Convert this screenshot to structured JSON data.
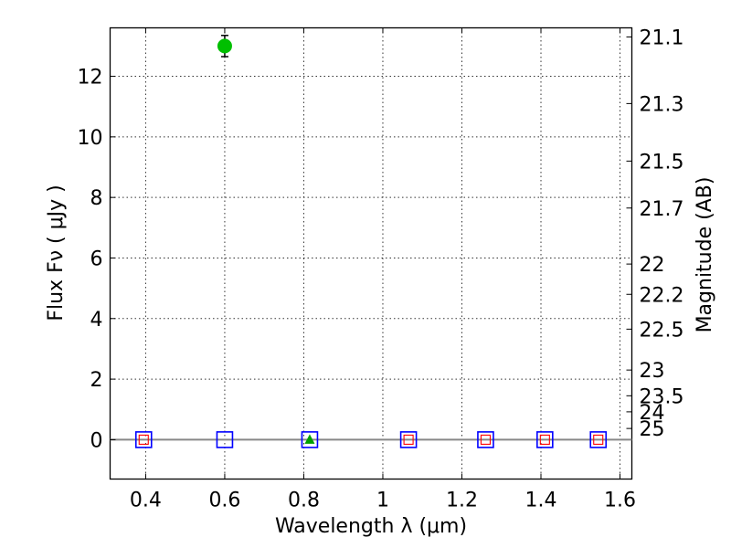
{
  "chart_data": {
    "type": "scatter",
    "xlabel": "Wavelength  λ (μm)",
    "ylabel": "Flux  Fν  ( μJy )",
    "y2label": "Magnitude (AB)",
    "xlim": [
      0.31,
      1.63
    ],
    "ylim": [
      -1.3,
      13.6
    ],
    "grid": true,
    "x_ticks": [
      0.4,
      0.6,
      0.8,
      1.0,
      1.2,
      1.4,
      1.6
    ],
    "x_tick_labels": [
      "0.4",
      "0.6",
      "0.8",
      "1",
      "1.2",
      "1.4",
      "1.6"
    ],
    "y_ticks": [
      0,
      2,
      4,
      6,
      8,
      10,
      12
    ],
    "y_tick_labels": [
      "0",
      "2",
      "4",
      "6",
      "8",
      "10",
      "12"
    ],
    "mag_ticks": [
      {
        "label": "21.1",
        "flux": 13.3
      },
      {
        "label": "21.3",
        "flux": 11.1
      },
      {
        "label": "21.5",
        "flux": 9.2
      },
      {
        "label": "21.7",
        "flux": 7.65
      },
      {
        "label": "22",
        "flux": 5.8
      },
      {
        "label": "22.2",
        "flux": 4.8
      },
      {
        "label": "22.5",
        "flux": 3.65
      },
      {
        "label": "23",
        "flux": 2.3
      },
      {
        "label": "23.5",
        "flux": 1.45
      },
      {
        "label": "24",
        "flux": 0.92
      },
      {
        "label": "25",
        "flux": 0.37
      }
    ],
    "zero_line": 0,
    "colors": {
      "detection": "#00bf00",
      "upper_limit_box": "#0000ff",
      "model": "#ff0000",
      "triangle": "#00a000",
      "zero_line": "#888888"
    },
    "series": [
      {
        "name": "detection",
        "marker": "circle",
        "points": [
          {
            "x": 0.6,
            "y": 13.0,
            "yerr": 0.35
          }
        ]
      },
      {
        "name": "upper-limit",
        "marker": "open-square",
        "points": [
          {
            "x": 0.395,
            "y": 0
          },
          {
            "x": 0.6,
            "y": 0
          },
          {
            "x": 0.815,
            "y": 0
          },
          {
            "x": 1.065,
            "y": 0
          },
          {
            "x": 1.26,
            "y": 0
          },
          {
            "x": 1.41,
            "y": 0
          },
          {
            "x": 1.545,
            "y": 0
          }
        ]
      },
      {
        "name": "model",
        "marker": "small-open-square",
        "points": [
          {
            "x": 0.395,
            "y": 0
          },
          {
            "x": 1.065,
            "y": 0
          },
          {
            "x": 1.26,
            "y": 0
          },
          {
            "x": 1.41,
            "y": 0
          },
          {
            "x": 1.545,
            "y": 0
          }
        ]
      },
      {
        "name": "triangle",
        "marker": "triangle",
        "points": [
          {
            "x": 0.815,
            "y": 0
          }
        ]
      }
    ]
  }
}
